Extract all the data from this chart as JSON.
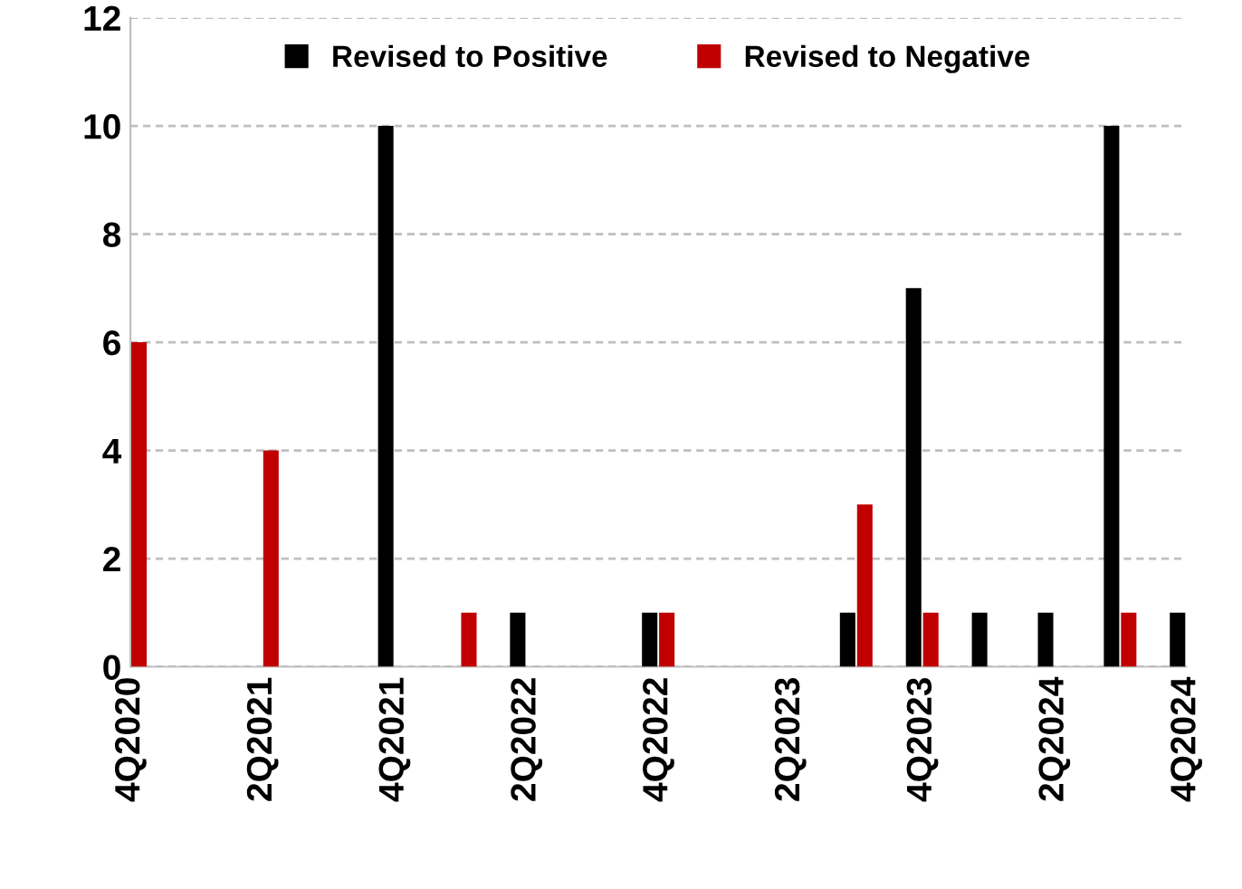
{
  "chart_data": {
    "type": "bar",
    "categories": [
      "4Q2020",
      null,
      "2Q2021",
      null,
      "4Q2021",
      null,
      "2Q2022",
      null,
      "4Q2022",
      null,
      "2Q2023",
      null,
      "4Q2023",
      null,
      "2Q2024",
      null,
      "4Q2024"
    ],
    "series": [
      {
        "name": "Revised to Positive",
        "color": "#000000",
        "values": [
          0,
          0,
          0,
          0,
          10,
          0,
          1,
          0,
          1,
          0,
          0,
          1,
          7,
          1,
          1,
          10,
          1
        ]
      },
      {
        "name": "Revised to Negative",
        "color": "#c00000",
        "values": [
          6,
          0,
          4,
          0,
          0,
          1,
          0,
          0,
          1,
          0,
          0,
          3,
          1,
          0,
          0,
          1,
          0
        ]
      }
    ],
    "ylim": [
      0,
      12
    ],
    "yticks": [
      0,
      2,
      4,
      6,
      8,
      10,
      12
    ],
    "grid": "y",
    "legend": "top"
  }
}
